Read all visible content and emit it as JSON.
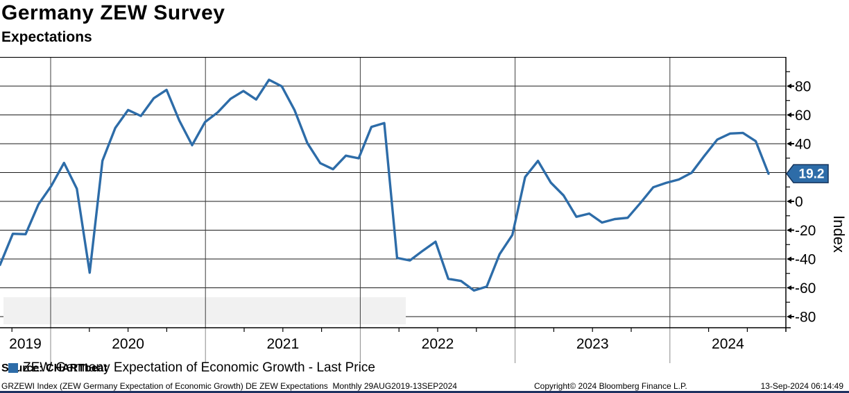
{
  "header": {
    "title": "Germany ZEW Survey",
    "subtitle": "Expectations"
  },
  "legend": {
    "label": "ZEW Germany Expectation of Economic Growth - Last Price",
    "marker_color": "#2d6ca8",
    "background": "#f1f1f1",
    "position": "bottom-left-inside"
  },
  "tag": {
    "value": "19.2",
    "fill": "#2d6ca8",
    "border": "#14335b",
    "text_color": "#ffffff"
  },
  "source": {
    "label": "Source: CHARTbeat"
  },
  "footer": {
    "left": "GRZEWI Index (ZEW Germany Expectation of Economic Growth) DE ZEW Expectations  Monthly 29AUG2019-13SEP2024",
    "center": "Copyright© 2024 Bloomberg Finance L.P.",
    "right": "13-Sep-2024 06:14:49"
  },
  "chart_data": {
    "type": "line",
    "title": "Germany ZEW Survey",
    "subtitle": "Expectations",
    "ylabel": "Index",
    "ylim": [
      -88,
      100
    ],
    "y_ticks": [
      80,
      60,
      40,
      20,
      0,
      -20,
      -40,
      -60,
      -80
    ],
    "y_minor_ticks": [
      90,
      70,
      50,
      30,
      10,
      -10,
      -30,
      -50,
      -70
    ],
    "x_tick_labels": [
      "2019",
      "2020",
      "2021",
      "2022",
      "2023",
      "2024"
    ],
    "grid": true,
    "legend_position": "bottom-left-inside",
    "line_color": "#2d6ca8",
    "last_value": 19.2,
    "frequency": "Monthly",
    "period": "29AUG2019-13SEP2024",
    "series": [
      {
        "name": "ZEW Germany Expectation of Economic Growth - Last Price",
        "start_period": "Aug 2019",
        "end_period": "Aug 2024",
        "values": [
          -44.1,
          -22.5,
          -22.8,
          -2.1,
          10.7,
          26.7,
          8.7,
          -49.5,
          28.2,
          51.0,
          63.4,
          59.3,
          71.5,
          77.4,
          56.1,
          39.0,
          55.0,
          61.8,
          71.2,
          76.6,
          70.7,
          84.4,
          79.8,
          63.3,
          40.4,
          26.5,
          22.3,
          31.7,
          29.9,
          51.7,
          54.3,
          -39.3,
          -41.0,
          -34.3,
          -28.0,
          -53.8,
          -55.3,
          -61.9,
          -59.2,
          -36.7,
          -23.3,
          16.9,
          28.1,
          13.0,
          4.1,
          -10.7,
          -8.5,
          -14.7,
          -12.3,
          -11.4,
          -1.1,
          9.8,
          12.8,
          15.2,
          19.9,
          31.7,
          42.9,
          47.1,
          47.5,
          41.8,
          19.2
        ]
      }
    ]
  }
}
